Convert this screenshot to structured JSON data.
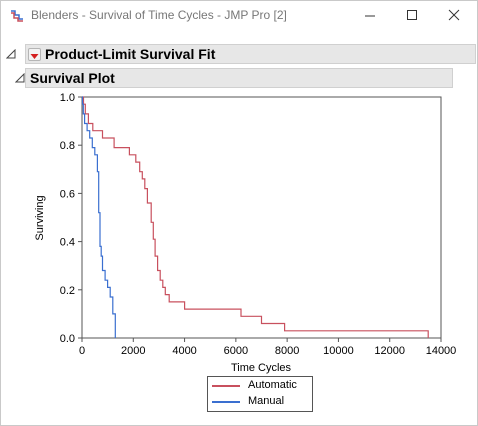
{
  "window": {
    "title": "Blenders - Survival of Time Cycles - JMP Pro [2]",
    "icon": "jmp-report-icon"
  },
  "report": {
    "outline_title": "Product-Limit Survival Fit",
    "sub_outline_title": "Survival Plot"
  },
  "colors": {
    "automatic": "#c8505e",
    "manual": "#3a6fd0"
  },
  "chart_data": {
    "type": "line",
    "step": true,
    "xlabel": "Time Cycles",
    "ylabel": "Surviving",
    "xlim": [
      0,
      14000
    ],
    "ylim": [
      0,
      1
    ],
    "xticks": [
      "0",
      "2000",
      "4000",
      "6000",
      "8000",
      "10000",
      "12000",
      "14000"
    ],
    "yticks": [
      "0.0",
      "0.2",
      "0.4",
      "0.6",
      "0.8",
      "1.0"
    ],
    "grid": false,
    "legend_position": "bottom",
    "series": [
      {
        "name": "Automatic",
        "x": [
          0,
          60,
          130,
          250,
          420,
          800,
          1250,
          1850,
          2100,
          2250,
          2350,
          2450,
          2550,
          2700,
          2780,
          2850,
          2950,
          3050,
          3150,
          3250,
          3400,
          3500,
          4000,
          6200,
          6500,
          7000,
          7900,
          13500
        ],
        "y": [
          1.0,
          0.97,
          0.93,
          0.89,
          0.86,
          0.83,
          0.79,
          0.76,
          0.73,
          0.69,
          0.66,
          0.62,
          0.56,
          0.48,
          0.41,
          0.34,
          0.28,
          0.24,
          0.21,
          0.18,
          0.15,
          0.15,
          0.12,
          0.09,
          0.09,
          0.06,
          0.03,
          0.0
        ]
      },
      {
        "name": "Manual",
        "x": [
          0,
          20,
          50,
          100,
          200,
          300,
          400,
          500,
          600,
          650,
          700,
          750,
          800,
          900,
          1000,
          1100,
          1200,
          1300
        ],
        "y": [
          1.0,
          0.97,
          0.93,
          0.89,
          0.86,
          0.83,
          0.79,
          0.76,
          0.69,
          0.52,
          0.38,
          0.34,
          0.28,
          0.24,
          0.21,
          0.17,
          0.1,
          0.0
        ]
      }
    ]
  }
}
